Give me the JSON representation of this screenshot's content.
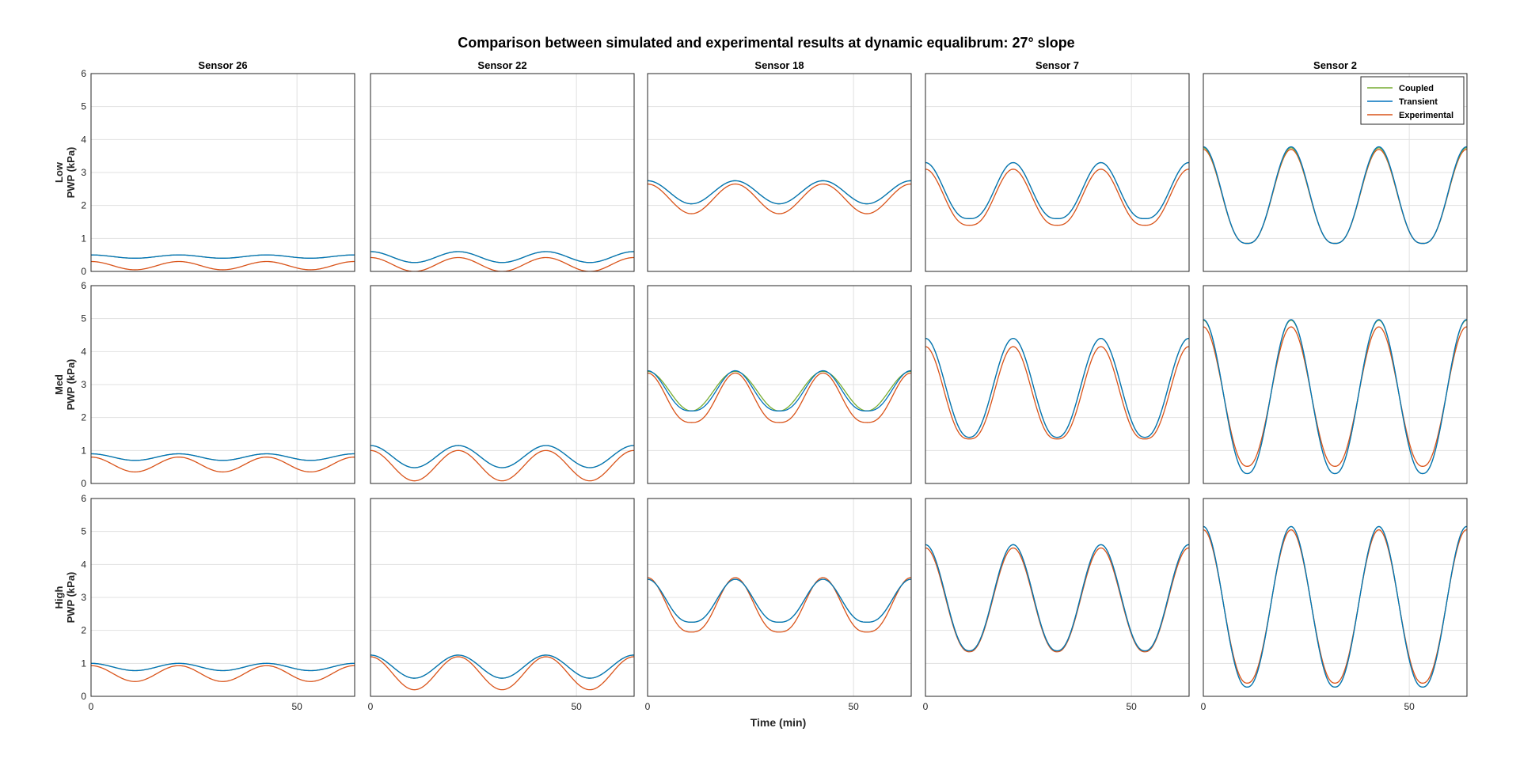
{
  "figure": {
    "title": "Comparison between simulated and experimental results at dynamic equalibrum: 27° slope",
    "xlabel": "Time (min)",
    "ylabel_unit": "PWP (kPa)",
    "columns": [
      "Sensor 26",
      "Sensor 22",
      "Sensor 18",
      "Sensor 7",
      "Sensor 2"
    ],
    "rows": [
      "Low",
      "Med",
      "High"
    ],
    "legend": [
      "Coupled",
      "Transient",
      "Experimental"
    ],
    "colors": {
      "Coupled": "#77ac30",
      "Transient": "#0072bd",
      "Experimental": "#d95319",
      "grid": "#e1e1e1",
      "axis": "#262626"
    }
  },
  "chart_data": {
    "type": "line",
    "x_range": [
      0,
      64
    ],
    "ylim": [
      0,
      6
    ],
    "xticks": [
      0,
      50
    ],
    "yticks": [
      0,
      1,
      2,
      3,
      4,
      5,
      6
    ],
    "grid": true,
    "legend_position": "top-right (Sensor 2, Low)",
    "period_min": 21.3,
    "phase_peak_min": [
      0,
      21.3,
      42.7,
      64
    ],
    "panels": [
      {
        "row": "Low",
        "sensor": "Sensor 26",
        "coupled": {
          "min": 0.4,
          "max": 0.5
        },
        "transient": {
          "min": 0.4,
          "max": 0.5
        },
        "experimental": {
          "min": 0.05,
          "max": 0.3
        }
      },
      {
        "row": "Low",
        "sensor": "Sensor 22",
        "coupled": {
          "min": 0.27,
          "max": 0.6
        },
        "transient": {
          "min": 0.27,
          "max": 0.6
        },
        "experimental": {
          "min": 0.0,
          "max": 0.42
        }
      },
      {
        "row": "Low",
        "sensor": "Sensor 18",
        "coupled": {
          "min": 2.05,
          "max": 2.75
        },
        "transient": {
          "min": 2.05,
          "max": 2.75
        },
        "experimental": {
          "min": 1.75,
          "max": 2.65
        }
      },
      {
        "row": "Low",
        "sensor": "Sensor 7",
        "coupled": {
          "min": 1.6,
          "max": 3.3
        },
        "transient": {
          "min": 1.6,
          "max": 3.3
        },
        "experimental": {
          "min": 1.4,
          "max": 3.1
        }
      },
      {
        "row": "Low",
        "sensor": "Sensor 2",
        "coupled": {
          "min": 0.85,
          "max": 3.75
        },
        "transient": {
          "min": 0.85,
          "max": 3.78
        },
        "experimental": {
          "min": 0.85,
          "max": 3.7
        }
      },
      {
        "row": "Med",
        "sensor": "Sensor 26",
        "coupled": {
          "min": 0.7,
          "max": 0.9
        },
        "transient": {
          "min": 0.7,
          "max": 0.9
        },
        "experimental": {
          "min": 0.35,
          "max": 0.8
        }
      },
      {
        "row": "Med",
        "sensor": "Sensor 22",
        "coupled": {
          "min": 0.48,
          "max": 1.15
        },
        "transient": {
          "min": 0.48,
          "max": 1.15
        },
        "experimental": {
          "min": 0.08,
          "max": 1.0
        }
      },
      {
        "row": "Med",
        "sensor": "Sensor 18",
        "coupled": {
          "min": 2.2,
          "max": 3.4
        },
        "transient": {
          "min": 2.2,
          "max": 3.42
        },
        "experimental": {
          "min": 1.85,
          "max": 3.35
        }
      },
      {
        "row": "Med",
        "sensor": "Sensor 7",
        "coupled": {
          "min": 1.4,
          "max": 4.4
        },
        "transient": {
          "min": 1.4,
          "max": 4.4
        },
        "experimental": {
          "min": 1.35,
          "max": 4.15
        }
      },
      {
        "row": "Med",
        "sensor": "Sensor 2",
        "coupled": {
          "min": 0.3,
          "max": 4.95
        },
        "transient": {
          "min": 0.3,
          "max": 4.97
        },
        "experimental": {
          "min": 0.52,
          "max": 4.75
        }
      },
      {
        "row": "High",
        "sensor": "Sensor 26",
        "coupled": {
          "min": 0.78,
          "max": 1.0
        },
        "transient": {
          "min": 0.78,
          "max": 1.0
        },
        "experimental": {
          "min": 0.45,
          "max": 0.93
        }
      },
      {
        "row": "High",
        "sensor": "Sensor 22",
        "coupled": {
          "min": 0.55,
          "max": 1.25
        },
        "transient": {
          "min": 0.55,
          "max": 1.25
        },
        "experimental": {
          "min": 0.2,
          "max": 1.2
        }
      },
      {
        "row": "High",
        "sensor": "Sensor 18",
        "coupled": {
          "min": 2.25,
          "max": 3.55
        },
        "transient": {
          "min": 2.25,
          "max": 3.55
        },
        "experimental": {
          "min": 1.95,
          "max": 3.6
        }
      },
      {
        "row": "High",
        "sensor": "Sensor 7",
        "coupled": {
          "min": 1.38,
          "max": 4.6
        },
        "transient": {
          "min": 1.38,
          "max": 4.6
        },
        "experimental": {
          "min": 1.35,
          "max": 4.5
        }
      },
      {
        "row": "High",
        "sensor": "Sensor 2",
        "coupled": {
          "min": 0.28,
          "max": 5.15
        },
        "transient": {
          "min": 0.28,
          "max": 5.15
        },
        "experimental": {
          "min": 0.4,
          "max": 5.05
        }
      }
    ]
  }
}
